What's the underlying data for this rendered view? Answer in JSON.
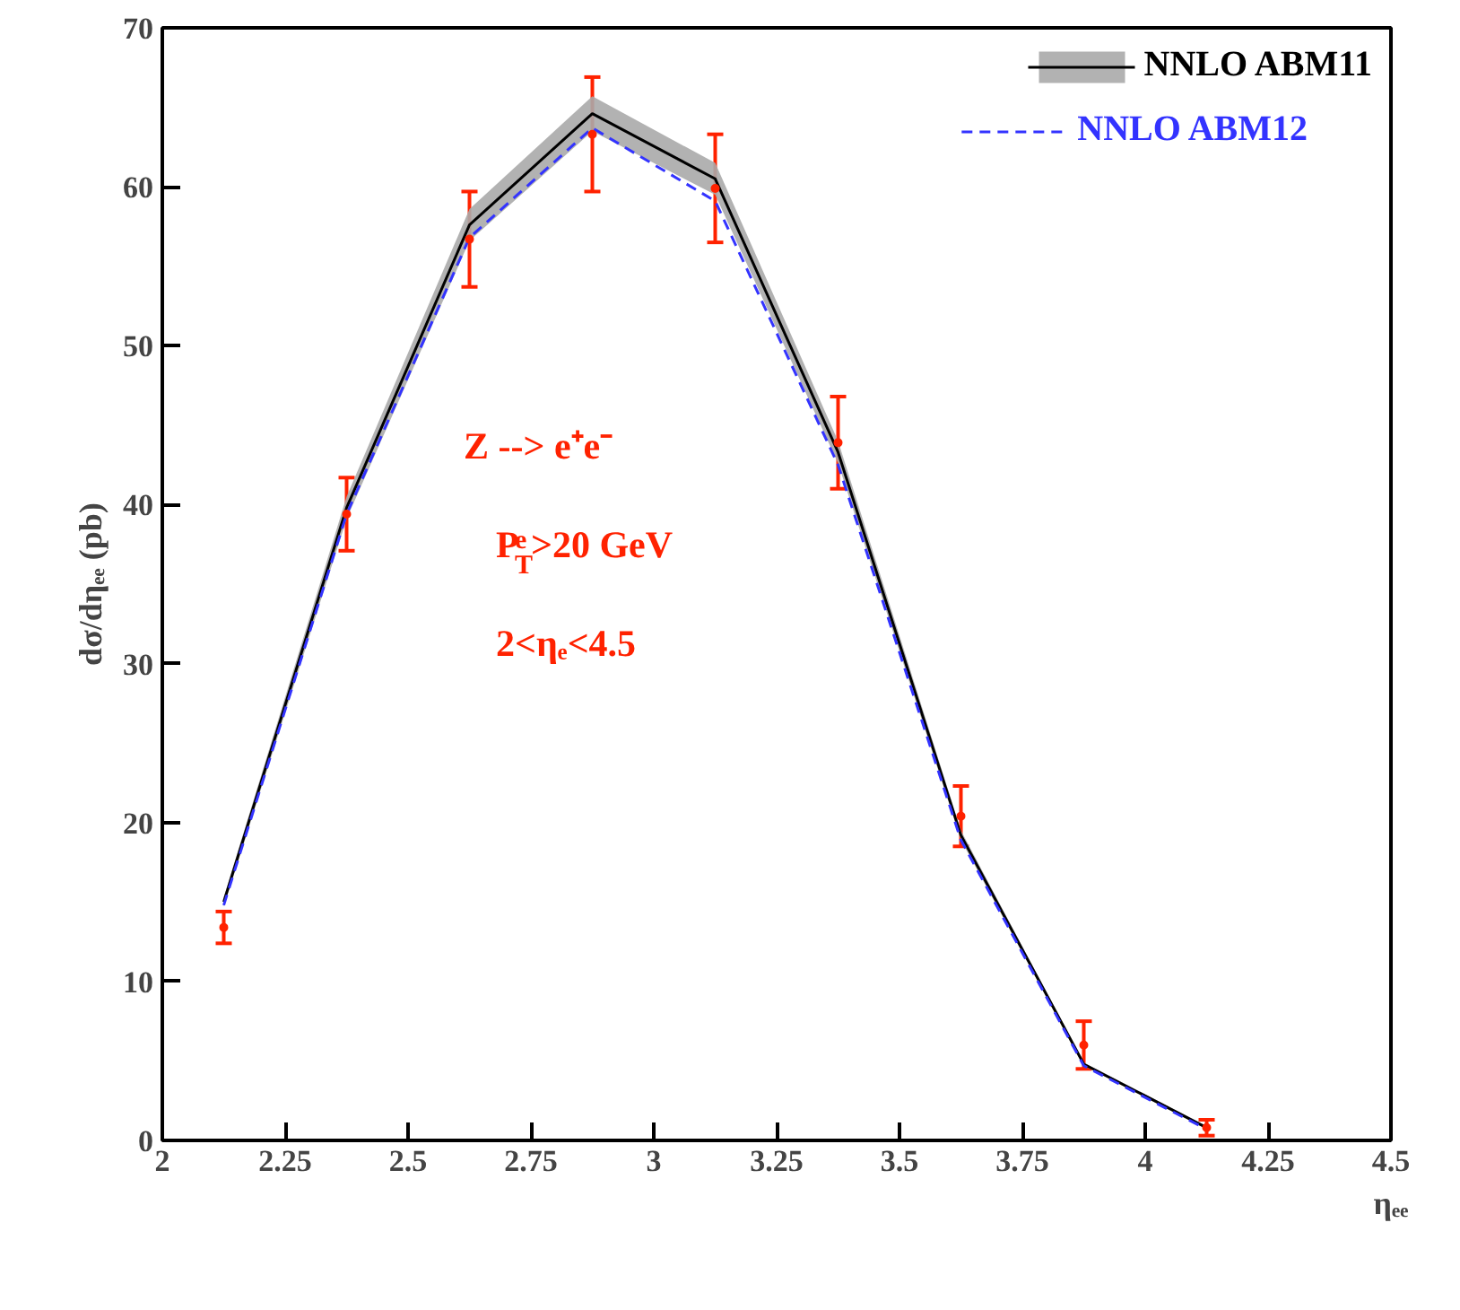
{
  "chart_data": {
    "type": "line",
    "xlabel": "ηₑₑ",
    "ylabel": "dσ/dηₑₑ (pb)",
    "x": [
      2.125,
      2.375,
      2.625,
      2.875,
      3.125,
      3.375,
      3.625,
      3.875,
      4.125
    ],
    "series": [
      {
        "name": "NNLO ABM11",
        "color": "#000000",
        "line_style": "solid",
        "values": [
          15.0,
          39.8,
          57.6,
          64.6,
          60.5,
          43.3,
          19.2,
          4.8,
          0.8
        ],
        "lower": [
          14.7,
          39.1,
          56.6,
          63.5,
          59.5,
          42.6,
          18.9,
          4.7,
          0.7
        ],
        "upper": [
          15.3,
          40.5,
          58.6,
          65.7,
          61.5,
          44.0,
          19.5,
          4.9,
          0.9
        ]
      },
      {
        "name": "NNLO ABM12",
        "color": "#3333ff",
        "line_style": "dashed",
        "values": [
          14.8,
          39.4,
          56.8,
          63.7,
          59.1,
          42.5,
          18.9,
          4.7,
          0.7
        ]
      },
      {
        "type": "scatter",
        "color": "#ff2200",
        "marker": "circle",
        "values": [
          13.4,
          39.4,
          56.7,
          63.3,
          59.9,
          43.9,
          20.4,
          6.0,
          0.8
        ],
        "errors": [
          1.0,
          2.3,
          3.0,
          3.6,
          3.4,
          2.9,
          1.9,
          1.5,
          0.5
        ]
      }
    ],
    "xlim": [
      2,
      4.5
    ],
    "xticks": [
      2,
      2.25,
      2.5,
      2.75,
      3,
      3.25,
      3.5,
      3.75,
      4,
      4.25,
      4.5
    ],
    "ylim": [
      0,
      70
    ],
    "yticks": [
      0,
      10,
      20,
      30,
      40,
      50,
      60,
      70
    ],
    "grid": false,
    "legend": "top right",
    "annotations": [
      "Z --> e⁺e⁻",
      "P$_{T}$$^{e}$>20 GeV",
      "2<ηₑ<4.5"
    ]
  }
}
